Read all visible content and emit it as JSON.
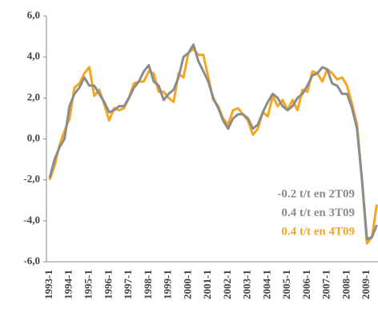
{
  "chart_data": {
    "type": "line",
    "categories": [
      "1993-1",
      null,
      null,
      null,
      "1994-1",
      null,
      null,
      null,
      "1995-1",
      null,
      null,
      null,
      "1996-1",
      null,
      null,
      null,
      "1997-1",
      null,
      null,
      null,
      "1998-1",
      null,
      null,
      null,
      "1999-1",
      null,
      null,
      null,
      "2000-1",
      null,
      null,
      null,
      "2001-1",
      null,
      null,
      null,
      "2002-1",
      null,
      null,
      null,
      "2003-1",
      null,
      null,
      null,
      "2004-1",
      null,
      null,
      null,
      "2005-1",
      null,
      null,
      null,
      "2006-1",
      null,
      null,
      null,
      "2007-1",
      null,
      null,
      null,
      "2008-1",
      null,
      null,
      null,
      "2009-1",
      null,
      null
    ],
    "series": [
      {
        "color": "#f5a623",
        "values": [
          -2.0,
          -1.3,
          -0.3,
          0.4,
          1.0,
          2.5,
          2.7,
          3.2,
          3.5,
          2.1,
          2.4,
          1.7,
          0.9,
          1.5,
          1.4,
          1.5,
          2.0,
          2.7,
          2.8,
          2.8,
          3.3,
          3.2,
          2.3,
          2.3,
          2.0,
          1.8,
          3.2,
          3.0,
          4.2,
          4.4,
          4.1,
          4.1,
          3.0,
          1.9,
          1.6,
          1.0,
          0.7,
          1.4,
          1.5,
          1.2,
          0.9,
          0.2,
          0.5,
          1.3,
          1.1,
          2.1,
          1.6,
          1.9,
          1.4,
          1.9,
          1.4,
          2.4,
          2.3,
          3.3,
          3.2,
          2.8,
          3.4,
          3.2,
          2.9,
          3.0,
          2.6,
          1.7,
          0.7,
          -2.0,
          -5.1,
          -4.8,
          -3.2
        ]
      },
      {
        "color": "#8c8c8c",
        "values": [
          -1.9,
          -1.0,
          -0.4,
          0.0,
          1.6,
          2.2,
          2.5,
          3.0,
          2.6,
          2.6,
          2.2,
          1.8,
          1.3,
          1.4,
          1.6,
          1.6,
          2.0,
          2.5,
          2.8,
          3.3,
          3.6,
          2.8,
          2.6,
          1.9,
          2.2,
          2.4,
          3.0,
          4.0,
          4.2,
          4.6,
          3.8,
          3.3,
          2.8,
          2.0,
          1.5,
          0.9,
          0.5,
          1.0,
          1.2,
          1.2,
          1.0,
          0.5,
          0.7,
          1.3,
          1.8,
          2.2,
          2.0,
          1.6,
          1.4,
          1.6,
          2.0,
          2.2,
          2.6,
          3.1,
          3.2,
          3.5,
          3.4,
          2.7,
          2.6,
          2.2,
          2.2,
          1.5,
          0.5,
          -2.0,
          -4.9,
          -4.8,
          -4.2
        ]
      }
    ],
    "ylim": [
      -6,
      6
    ],
    "yticks": [
      {
        "value": -6,
        "label": "-6,0"
      },
      {
        "value": -4,
        "label": "-4,0"
      },
      {
        "value": -2,
        "label": "-2,0"
      },
      {
        "value": 0,
        "label": "0,0"
      },
      {
        "value": 2,
        "label": "2,0"
      },
      {
        "value": 4,
        "label": "4,0"
      },
      {
        "value": 6,
        "label": "6,0"
      }
    ],
    "annotations": [
      {
        "text": "-0.2 t/t en 2T09",
        "color": "#8c8c8c"
      },
      {
        "text": "0.4 t/t en 3T09",
        "color": "#8c8c8c"
      },
      {
        "text": "0.4 t/t en 4T09",
        "color": "#f5a623"
      }
    ]
  }
}
